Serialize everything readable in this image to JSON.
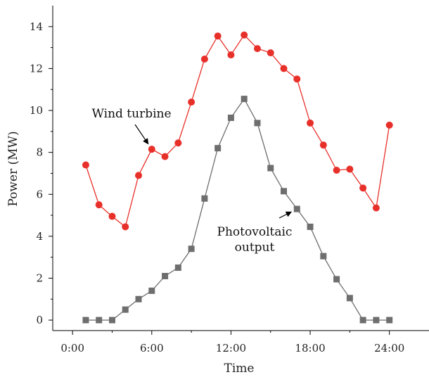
{
  "chart_data": {
    "type": "line",
    "xlabel": "Time",
    "ylabel": "Power (MW)",
    "xlim": [
      -1.5,
      27
    ],
    "ylim": [
      -0.5,
      15
    ],
    "x_ticks": [
      0,
      6,
      12,
      18,
      24
    ],
    "x_tick_labels": [
      "0:00",
      "6:00",
      "12:00",
      "18:00",
      "24:00"
    ],
    "y_ticks": [
      0,
      2,
      4,
      6,
      8,
      10,
      12,
      14
    ],
    "y_tick_labels": [
      "0",
      "2",
      "4",
      "6",
      "8",
      "10",
      "12",
      "14"
    ],
    "grid": false,
    "series": [
      {
        "name": "Wind turbine",
        "color": "#e8302a",
        "marker": "circle",
        "x": [
          1,
          2,
          3,
          4,
          5,
          6,
          7,
          8,
          9,
          10,
          11,
          12,
          13,
          14,
          15,
          16,
          17,
          18,
          19,
          20,
          21,
          22,
          23,
          24
        ],
        "y": [
          7.4,
          5.5,
          4.95,
          4.45,
          6.9,
          8.15,
          7.8,
          8.45,
          10.4,
          12.45,
          13.55,
          12.65,
          13.6,
          12.95,
          12.75,
          12.0,
          11.5,
          9.4,
          8.35,
          7.15,
          7.2,
          6.3,
          5.35,
          9.3
        ]
      },
      {
        "name": "Photovoltaic output",
        "color": "#6e6e6e",
        "marker": "square",
        "x": [
          1,
          2,
          3,
          4,
          5,
          6,
          7,
          8,
          9,
          10,
          11,
          12,
          13,
          14,
          15,
          16,
          17,
          18,
          19,
          20,
          21,
          22,
          23,
          24
        ],
        "y": [
          0,
          0,
          0,
          0.5,
          1.0,
          1.4,
          2.1,
          2.5,
          3.4,
          5.8,
          8.2,
          9.65,
          10.55,
          9.4,
          7.25,
          6.15,
          5.3,
          4.45,
          3.05,
          1.95,
          1.05,
          0,
          0,
          0
        ]
      }
    ],
    "annotations": [
      {
        "lines": [
          "Wind turbine"
        ],
        "series_index": 0,
        "point_index": 5
      },
      {
        "lines": [
          "Photovoltaic",
          "output"
        ],
        "series_index": 1,
        "point_index": 16
      }
    ]
  }
}
